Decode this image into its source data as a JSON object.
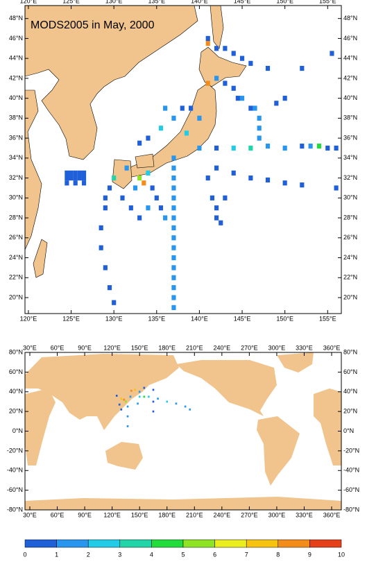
{
  "title": "MODS2005 in May, 2000",
  "maps": [
    {
      "xlim": [
        119.6,
        156.6
      ],
      "ylim": [
        18.4,
        49.3
      ],
      "xticks": [
        {
          "value": 120,
          "label": "120°E"
        },
        {
          "value": 125,
          "label": "125°E"
        },
        {
          "value": 130,
          "label": "130°E"
        },
        {
          "value": 135,
          "label": "135°E"
        },
        {
          "value": 140,
          "label": "140°E"
        },
        {
          "value": 145,
          "label": "145°E"
        },
        {
          "value": 150,
          "label": "150°E"
        },
        {
          "value": 155,
          "label": "155°E"
        }
      ],
      "yticks": [
        {
          "value": 20,
          "label": "20°N"
        },
        {
          "value": 22,
          "label": "22°N"
        },
        {
          "value": 24,
          "label": "24°N"
        },
        {
          "value": 26,
          "label": "26°N"
        },
        {
          "value": 28,
          "label": "28°N"
        },
        {
          "value": 30,
          "label": "30°N"
        },
        {
          "value": 32,
          "label": "32°N"
        },
        {
          "value": 34,
          "label": "34°N"
        },
        {
          "value": 36,
          "label": "36°N"
        },
        {
          "value": 38,
          "label": "38°N"
        },
        {
          "value": 40,
          "label": "40°N"
        },
        {
          "value": 42,
          "label": "42°N"
        },
        {
          "value": 44,
          "label": "44°N"
        },
        {
          "value": 46,
          "label": "46°N"
        },
        {
          "value": 48,
          "label": "48°N"
        }
      ],
      "cells": [
        [
          124.5,
          32.5,
          1
        ],
        [
          125,
          32.5,
          1
        ],
        [
          125.5,
          32.5,
          1
        ],
        [
          126,
          32.5,
          1
        ],
        [
          126.5,
          32.5,
          1
        ],
        [
          124.5,
          32,
          1
        ],
        [
          125,
          32,
          1
        ],
        [
          125.5,
          32,
          1
        ],
        [
          126,
          32,
          1
        ],
        [
          126.5,
          32,
          1
        ],
        [
          124.5,
          31.5,
          1
        ],
        [
          125.5,
          31.5,
          1
        ],
        [
          126.5,
          31.5,
          1
        ],
        [
          137,
          19,
          2
        ],
        [
          137,
          20,
          2
        ],
        [
          137,
          21,
          2
        ],
        [
          137,
          22,
          2
        ],
        [
          137,
          23,
          2
        ],
        [
          137,
          24,
          2
        ],
        [
          137,
          25,
          2
        ],
        [
          137,
          26,
          2
        ],
        [
          137,
          27,
          2
        ],
        [
          137,
          28,
          2
        ],
        [
          137,
          29,
          2
        ],
        [
          137,
          30,
          2
        ],
        [
          137,
          31,
          2
        ],
        [
          137,
          32,
          2
        ],
        [
          137,
          33,
          2
        ],
        [
          137,
          34,
          2
        ],
        [
          130,
          19.5,
          1
        ],
        [
          129.5,
          21,
          1
        ],
        [
          129,
          23,
          1
        ],
        [
          128.5,
          25,
          1
        ],
        [
          128.5,
          27,
          1
        ],
        [
          129,
          29,
          1
        ],
        [
          129,
          30,
          1
        ],
        [
          129.5,
          31,
          1
        ],
        [
          133,
          32,
          6
        ],
        [
          133.5,
          31.5,
          9
        ],
        [
          134,
          32.5,
          3
        ],
        [
          132.5,
          31,
          2
        ],
        [
          134.5,
          31,
          1
        ],
        [
          135,
          30,
          1
        ],
        [
          135.5,
          29,
          1
        ],
        [
          136,
          28,
          2
        ],
        [
          131,
          30,
          1
        ],
        [
          132,
          29,
          1
        ],
        [
          133,
          28,
          1
        ],
        [
          134,
          29,
          2
        ],
        [
          130,
          32,
          4
        ],
        [
          131.5,
          33,
          2
        ],
        [
          140,
          35,
          2
        ],
        [
          142,
          35,
          1
        ],
        [
          144,
          35,
          3
        ],
        [
          146,
          35,
          4
        ],
        [
          148,
          35.2,
          2
        ],
        [
          150,
          35,
          2
        ],
        [
          152,
          35.2,
          1
        ],
        [
          153,
          35.2,
          2
        ],
        [
          154,
          35.2,
          5
        ],
        [
          155,
          35,
          1
        ],
        [
          156,
          35,
          1
        ],
        [
          142,
          33,
          1
        ],
        [
          144,
          32.5,
          1
        ],
        [
          146,
          32,
          1
        ],
        [
          148,
          31.8,
          1
        ],
        [
          150,
          31.5,
          1
        ],
        [
          152,
          31.3,
          1
        ],
        [
          156,
          31,
          1
        ],
        [
          147,
          38,
          2
        ],
        [
          147,
          37,
          2
        ],
        [
          147,
          36,
          2
        ],
        [
          146.5,
          39,
          2
        ],
        [
          145,
          40,
          2
        ],
        [
          141,
          32,
          1
        ],
        [
          141.5,
          30,
          1
        ],
        [
          142,
          29,
          1
        ],
        [
          142,
          28,
          1
        ],
        [
          143,
          30,
          1
        ],
        [
          142.5,
          27.5,
          1
        ],
        [
          137,
          38,
          2
        ],
        [
          138,
          39,
          1
        ],
        [
          136,
          39,
          2
        ],
        [
          135.5,
          37,
          3
        ],
        [
          134,
          36,
          1
        ],
        [
          133,
          35.5,
          1
        ],
        [
          139,
          39,
          1
        ],
        [
          140,
          38,
          2
        ],
        [
          138.5,
          36.5,
          3
        ],
        [
          141,
          41.5,
          9
        ],
        [
          141,
          45.5,
          9
        ],
        [
          141,
          46,
          1
        ],
        [
          142,
          45,
          1
        ],
        [
          143,
          45,
          1
        ],
        [
          144,
          44.5,
          1
        ],
        [
          145,
          44,
          1
        ],
        [
          146,
          43.5,
          1
        ],
        [
          148,
          43,
          1
        ],
        [
          152,
          43,
          1
        ],
        [
          155.5,
          44.5,
          1
        ],
        [
          142,
          42,
          2
        ],
        [
          143,
          41.5,
          1
        ],
        [
          144,
          41,
          1
        ],
        [
          144.5,
          40,
          1
        ],
        [
          146,
          39,
          1
        ],
        [
          149,
          39.5,
          1
        ],
        [
          150,
          40,
          1
        ]
      ]
    },
    {
      "xlim": [
        24.7,
        370.6
      ],
      "ylim": [
        -80,
        80
      ],
      "xticks": [
        {
          "value": 30,
          "label": "30°E"
        },
        {
          "value": 60,
          "label": "60°E"
        },
        {
          "value": 90,
          "label": "90°E"
        },
        {
          "value": 120,
          "label": "120°E"
        },
        {
          "value": 150,
          "label": "150°E"
        },
        {
          "value": 180,
          "label": "180°E"
        },
        {
          "value": 210,
          "label": "210°E"
        },
        {
          "value": 240,
          "label": "240°E"
        },
        {
          "value": 270,
          "label": "270°E"
        },
        {
          "value": 300,
          "label": "300°E"
        },
        {
          "value": 330,
          "label": "330°E"
        },
        {
          "value": 360,
          "label": "360°E"
        }
      ],
      "yticks": [
        {
          "value": -80,
          "label": "-80°N"
        },
        {
          "value": -60,
          "label": "-60°N"
        },
        {
          "value": -40,
          "label": "-40°N"
        },
        {
          "value": -20,
          "label": "-20°N"
        },
        {
          "value": 0,
          "label": "0°N"
        },
        {
          "value": 20,
          "label": "20°N"
        },
        {
          "value": 40,
          "label": "40°N"
        },
        {
          "value": 60,
          "label": "60°N"
        },
        {
          "value": 80,
          "label": "80°N"
        }
      ],
      "cells": [
        [
          200,
          25,
          2
        ],
        [
          205,
          22,
          2
        ],
        [
          190,
          28,
          2
        ],
        [
          180,
          30,
          3
        ],
        [
          170,
          33,
          2
        ],
        [
          160,
          35,
          3
        ],
        [
          155,
          35,
          5
        ],
        [
          150,
          35,
          3
        ],
        [
          140,
          35,
          2
        ],
        [
          133,
          32,
          9
        ],
        [
          130,
          33,
          8
        ],
        [
          135,
          30,
          6
        ],
        [
          137,
          25,
          2
        ],
        [
          137,
          15,
          2
        ],
        [
          137,
          5,
          2
        ],
        [
          130,
          22,
          1
        ],
        [
          128,
          27,
          1
        ],
        [
          145,
          42,
          8
        ],
        [
          141,
          41,
          9
        ],
        [
          150,
          40,
          2
        ],
        [
          155,
          44,
          1
        ],
        [
          165,
          42,
          1
        ],
        [
          165,
          30,
          1
        ],
        [
          165,
          20,
          1
        ],
        [
          148,
          28,
          2
        ],
        [
          125,
          36,
          1
        ]
      ]
    }
  ],
  "colorbar": {
    "colors": [
      "#1f5fd8",
      "#2896ee",
      "#22cce6",
      "#20d6a8",
      "#22dc3c",
      "#8ee422",
      "#eaee1e",
      "#f6c410",
      "#f48c1a",
      "#e6401a"
    ],
    "ticks": [
      0,
      1,
      2,
      3,
      4,
      5,
      6,
      7,
      8,
      9,
      10
    ]
  }
}
